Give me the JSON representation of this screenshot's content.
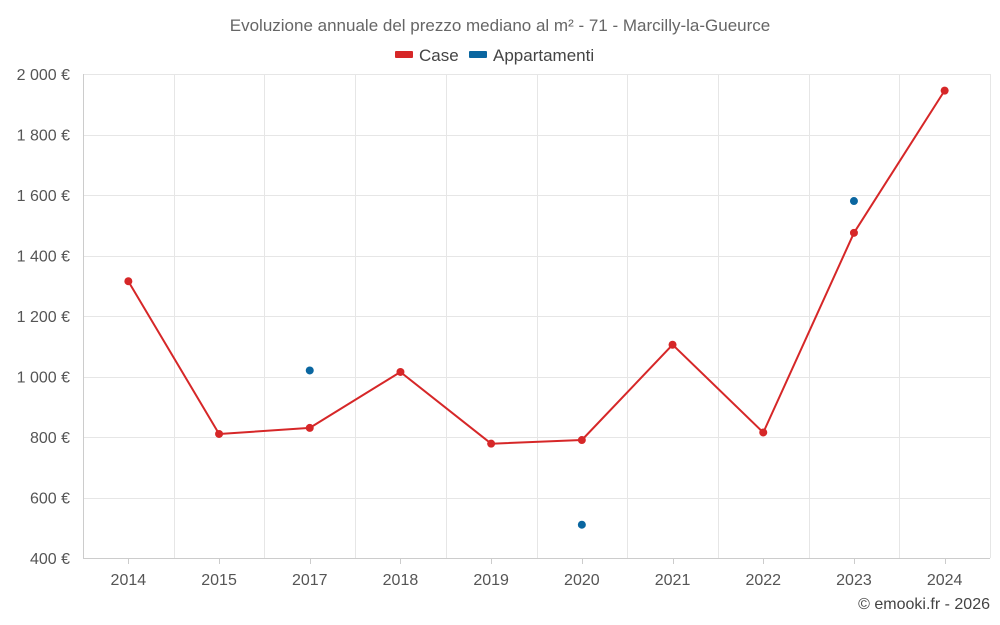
{
  "chart_data": {
    "type": "line",
    "title": "Evoluzione annuale del prezzo mediano al m² - 71 - Marcilly-la-Gueurce",
    "categories": [
      "2014",
      "2015",
      "2017",
      "2018",
      "2019",
      "2020",
      "2021",
      "2022",
      "2023",
      "2024"
    ],
    "ylim": [
      400,
      2000
    ],
    "yticks": [
      400,
      600,
      800,
      1000,
      1200,
      1400,
      1600,
      1800,
      2000
    ],
    "ytick_labels": [
      "400 €",
      "600 €",
      "800 €",
      "1 000 €",
      "1 200 €",
      "1 400 €",
      "1 600 €",
      "1 800 €",
      "2 000 €"
    ],
    "grid": true,
    "legend_position": "top-center",
    "series": [
      {
        "name": "Case",
        "color": "#d62728",
        "style": "line-markers",
        "values": [
          1315,
          810,
          830,
          1015,
          778,
          790,
          1105,
          815,
          1475,
          1945
        ]
      },
      {
        "name": "Appartamenti",
        "color": "#0a66a0",
        "style": "markers",
        "values": [
          null,
          null,
          1020,
          null,
          null,
          510,
          null,
          null,
          1580,
          null
        ]
      }
    ]
  },
  "credit": "© emooki.fr - 2026"
}
